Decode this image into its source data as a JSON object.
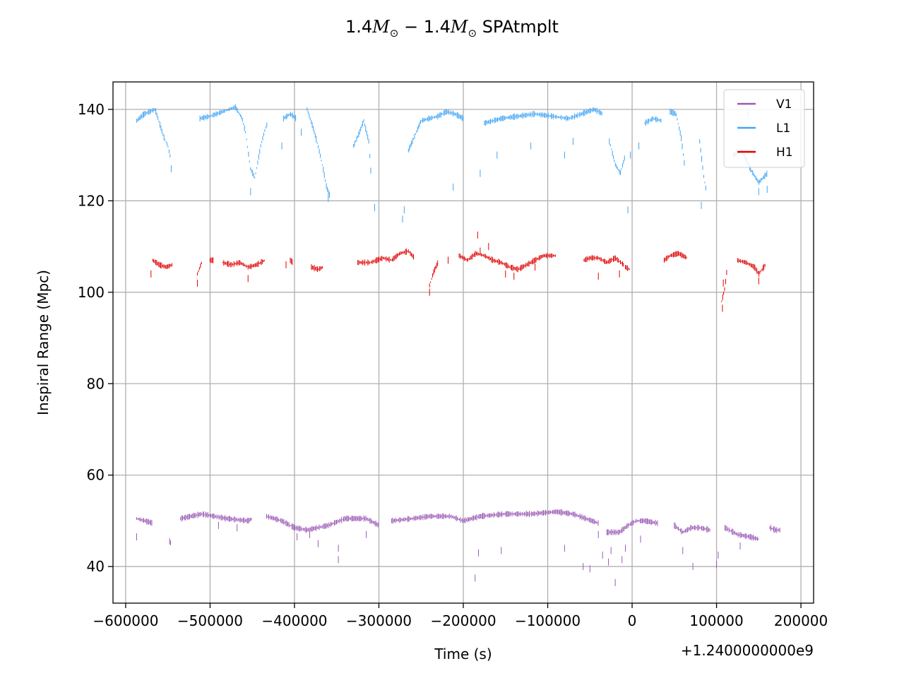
{
  "chart_data": {
    "type": "line",
    "title": {
      "prefix": "1.4",
      "mass_symbol": "M",
      "sun_symbol": "⊙",
      "minus": " − ",
      "suffix": " SPAtmplt"
    },
    "xlabel": "Time (s)",
    "ylabel": "Inspiral Range (Mpc)",
    "x_offset_label": "+1.2400000000e9",
    "x_offset": 1240000000,
    "xlim": [
      -615000,
      215000
    ],
    "ylim": [
      32,
      146
    ],
    "xticks": [
      -600000,
      -500000,
      -400000,
      -300000,
      -200000,
      -100000,
      0,
      100000,
      200000
    ],
    "xtick_labels": [
      "−600000",
      "−500000",
      "−400000",
      "−300000",
      "−200000",
      "−100000",
      "0",
      "100000",
      "200000"
    ],
    "yticks": [
      40,
      60,
      80,
      100,
      120,
      140
    ],
    "ytick_labels": [
      "40",
      "60",
      "80",
      "100",
      "120",
      "140"
    ],
    "grid": true,
    "legend_position": "top-right",
    "series": [
      {
        "name": "V1",
        "color": "#9b59b6",
        "segments": [
          {
            "t": [
              -587000,
              -577000,
              -568000
            ],
            "v": [
              50.5,
              50.0,
              49.5
            ]
          },
          {
            "t": [
              -548000,
              -546000
            ],
            "v": [
              45.5,
              45.0
            ]
          },
          {
            "t": [
              -535000,
              -510000,
              -480000,
              -455000,
              -450000
            ],
            "v": [
              50.5,
              51.5,
              50.5,
              50.0,
              50.5
            ]
          },
          {
            "t": [
              -433000,
              -415000,
              -400000,
              -385000,
              -360000,
              -340000,
              -315000,
              -300000
            ],
            "v": [
              51.0,
              50.0,
              48.5,
              48.0,
              49.0,
              50.5,
              50.5,
              49.0
            ]
          },
          {
            "t": [
              -285000,
              -260000,
              -240000,
              -215000,
              -200000,
              -180000,
              -150000,
              -120000,
              -90000,
              -70000,
              -55000,
              -40000
            ],
            "v": [
              50.0,
              50.5,
              51.0,
              51.0,
              50.0,
              51.0,
              51.5,
              51.5,
              52.0,
              51.5,
              50.5,
              49.5
            ]
          },
          {
            "t": [
              -30000,
              -15000,
              -5000,
              5000,
              15000,
              30000
            ],
            "v": [
              47.5,
              47.5,
              49.0,
              50.0,
              50.0,
              49.5
            ]
          },
          {
            "t": [
              50000,
              60000,
              70000,
              80000,
              92000
            ],
            "v": [
              49.0,
              47.5,
              48.5,
              48.5,
              48.0
            ]
          },
          {
            "t": [
              110000,
              125000,
              140000,
              150000
            ],
            "v": [
              48.5,
              47.0,
              46.5,
              46.0
            ]
          },
          {
            "t": [
              163000,
              170000,
              175000
            ],
            "v": [
              48.5,
              48.0,
              48.0
            ]
          }
        ],
        "spikes": [
          [
            -587000,
            46.5
          ],
          [
            -490000,
            49.0
          ],
          [
            -468000,
            48.5
          ],
          [
            -397000,
            46.5
          ],
          [
            -382000,
            47.0
          ],
          [
            -372000,
            45.0
          ],
          [
            -348000,
            44.0
          ],
          [
            -348000,
            41.5
          ],
          [
            -315000,
            47.0
          ],
          [
            -186000,
            37.5
          ],
          [
            -182000,
            43.0
          ],
          [
            -155000,
            43.5
          ],
          [
            -80000,
            44.0
          ],
          [
            -58000,
            40.0
          ],
          [
            -50000,
            39.5
          ],
          [
            -40000,
            47.0
          ],
          [
            -35000,
            42.5
          ],
          [
            -28000,
            41.0
          ],
          [
            -25000,
            43.5
          ],
          [
            -20000,
            36.5
          ],
          [
            -12000,
            41.5
          ],
          [
            -8000,
            44.0
          ],
          [
            10000,
            46.0
          ],
          [
            60000,
            43.5
          ],
          [
            72000,
            40.0
          ],
          [
            100000,
            40.5
          ],
          [
            102000,
            42.5
          ],
          [
            128000,
            44.5
          ]
        ]
      },
      {
        "name": "L1",
        "color": "#42a5f5",
        "segments": [
          {
            "t": [
              -587000,
              -578000,
              -565000,
              -560000,
              -555000,
              -550000,
              -547000
            ],
            "v": [
              137.5,
              139.0,
              140.0,
              137.0,
              134.0,
              132.0,
              129.5
            ]
          },
          {
            "t": [
              -512000,
              -500000,
              -485000,
              -470000,
              -462000,
              -458000,
              -452000,
              -447000,
              -440000,
              -435000,
              -432000
            ],
            "v": [
              138.0,
              138.5,
              139.5,
              140.5,
              138.0,
              135.0,
              127.0,
              125.0,
              132.0,
              135.5,
              137.0
            ]
          },
          {
            "t": [
              -413000,
              -405000,
              -398000
            ],
            "v": [
              138.0,
              139.0,
              138.0
            ]
          },
          {
            "t": [
              -385000,
              -378000,
              -372000,
              -366000,
              -362000,
              -358000
            ],
            "v": [
              140.0,
              136.0,
              132.0,
              127.0,
              123.0,
              121.0
            ]
          },
          {
            "t": [
              -330000,
              -324000,
              -318000,
              -312000,
              -309000
            ],
            "v": [
              132.0,
              134.5,
              137.5,
              133.0,
              125.0
            ]
          },
          {
            "t": [
              -265000,
              -258000,
              -250000,
              -240000,
              -230000,
              -220000,
              -210000,
              -200000
            ],
            "v": [
              131.0,
              134.0,
              137.5,
              138.0,
              138.5,
              139.5,
              139.0,
              138.0
            ]
          },
          {
            "t": [
              -175000,
              -155000,
              -135000,
              -115000,
              -95000,
              -75000,
              -60000,
              -45000,
              -35000
            ],
            "v": [
              137.0,
              138.0,
              138.5,
              139.0,
              138.5,
              138.0,
              139.0,
              140.0,
              139.0
            ]
          },
          {
            "t": [
              -27000,
              -20000,
              -14000,
              -8000
            ],
            "v": [
              133.0,
              128.0,
              126.0,
              130.0
            ]
          },
          {
            "t": [
              15000,
              25000,
              35000
            ],
            "v": [
              137.0,
              138.0,
              137.5
            ]
          },
          {
            "t": [
              45000,
              52000,
              58000,
              62000
            ],
            "v": [
              139.5,
              139.0,
              134.0,
              128.0
            ]
          },
          {
            "t": [
              80000,
              85000,
              88000
            ],
            "v": [
              133.0,
              125.0,
              122.0
            ]
          },
          {
            "t": [
              120000,
              130000,
              140000,
              150000,
              160000
            ],
            "v": [
              130.0,
              131.0,
              127.0,
              124.0,
              126.0
            ]
          }
        ],
        "spikes": [
          [
            -546000,
            127.0
          ],
          [
            -415000,
            132.0
          ],
          [
            -392000,
            135.0
          ],
          [
            -452000,
            122.0
          ],
          [
            -360000,
            120.5
          ],
          [
            -305000,
            118.5
          ],
          [
            -272000,
            116.0
          ],
          [
            -270000,
            118.0
          ],
          [
            -212000,
            123.0
          ],
          [
            -180000,
            126.0
          ],
          [
            -160000,
            130.0
          ],
          [
            -120000,
            132.0
          ],
          [
            -80000,
            130.0
          ],
          [
            -70000,
            133.0
          ],
          [
            -5000,
            118.0
          ],
          [
            -2000,
            130.0
          ],
          [
            8000,
            132.0
          ],
          [
            82000,
            119.0
          ],
          [
            150000,
            122.0
          ],
          [
            160000,
            122.5
          ],
          [
            137000,
            139.0
          ]
        ]
      },
      {
        "name": "H1",
        "color": "#e00000",
        "segments": [
          {
            "t": [
              -568000,
              -560000,
              -552000,
              -545000
            ],
            "v": [
              107.0,
              106.0,
              105.5,
              106.0
            ]
          },
          {
            "t": [
              -515000,
              -510000
            ],
            "v": [
              104.0,
              106.5
            ]
          },
          {
            "t": [
              -500000,
              -496000
            ],
            "v": [
              107.0,
              107.0
            ]
          },
          {
            "t": [
              -485000,
              -475000,
              -465000,
              -455000,
              -445000,
              -435000
            ],
            "v": [
              106.5,
              106.0,
              106.5,
              105.5,
              106.0,
              107.0
            ]
          },
          {
            "t": [
              -405000,
              -402000
            ],
            "v": [
              107.0,
              106.5
            ]
          },
          {
            "t": [
              -380000,
              -372000,
              -366000
            ],
            "v": [
              105.5,
              105.0,
              105.5
            ]
          },
          {
            "t": [
              -325000,
              -310000,
              -295000,
              -285000,
              -275000,
              -265000,
              -258000
            ],
            "v": [
              106.5,
              106.5,
              107.5,
              107.0,
              108.5,
              109.0,
              107.5
            ]
          },
          {
            "t": [
              -240000,
              -235000,
              -230000
            ],
            "v": [
              101.5,
              104.5,
              106.5
            ]
          },
          {
            "t": [
              -205000,
              -195000,
              -185000,
              -175000,
              -165000,
              -155000,
              -145000,
              -135000,
              -125000,
              -115000,
              -105000,
              -90000
            ],
            "v": [
              108.0,
              107.0,
              108.5,
              108.0,
              107.0,
              106.5,
              105.5,
              105.0,
              106.0,
              107.0,
              108.0,
              108.0
            ]
          },
          {
            "t": [
              -57000,
              -50000,
              -40000,
              -30000,
              -20000,
              -10000
            ],
            "v": [
              107.0,
              107.5,
              107.5,
              106.5,
              107.5,
              106.0
            ]
          },
          {
            "t": [
              -8000,
              -3000
            ],
            "v": [
              105.5,
              105.0
            ]
          },
          {
            "t": [
              38000,
              45000,
              55000,
              65000
            ],
            "v": [
              107.0,
              108.0,
              108.5,
              107.5
            ]
          },
          {
            "t": [
              106000,
              110000,
              113000
            ],
            "v": [
              98.0,
              101.0,
              106.0
            ]
          },
          {
            "t": [
              125000,
              135000,
              145000,
              150000,
              158000
            ],
            "v": [
              107.0,
              106.5,
              105.5,
              104.0,
              106.0
            ]
          }
        ],
        "spikes": [
          [
            -570000,
            104.0
          ],
          [
            -515000,
            102.0
          ],
          [
            -455000,
            103.0
          ],
          [
            -410000,
            106.0
          ],
          [
            -240000,
            100.0
          ],
          [
            -218000,
            107.0
          ],
          [
            -183000,
            112.5
          ],
          [
            -180000,
            109.0
          ],
          [
            -170000,
            110.0
          ],
          [
            -150000,
            104.0
          ],
          [
            -140000,
            103.5
          ],
          [
            -115000,
            105.5
          ],
          [
            -40000,
            103.5
          ],
          [
            -15000,
            104.0
          ],
          [
            107000,
            96.5
          ],
          [
            108000,
            102.0
          ],
          [
            150000,
            102.5
          ]
        ]
      }
    ]
  }
}
